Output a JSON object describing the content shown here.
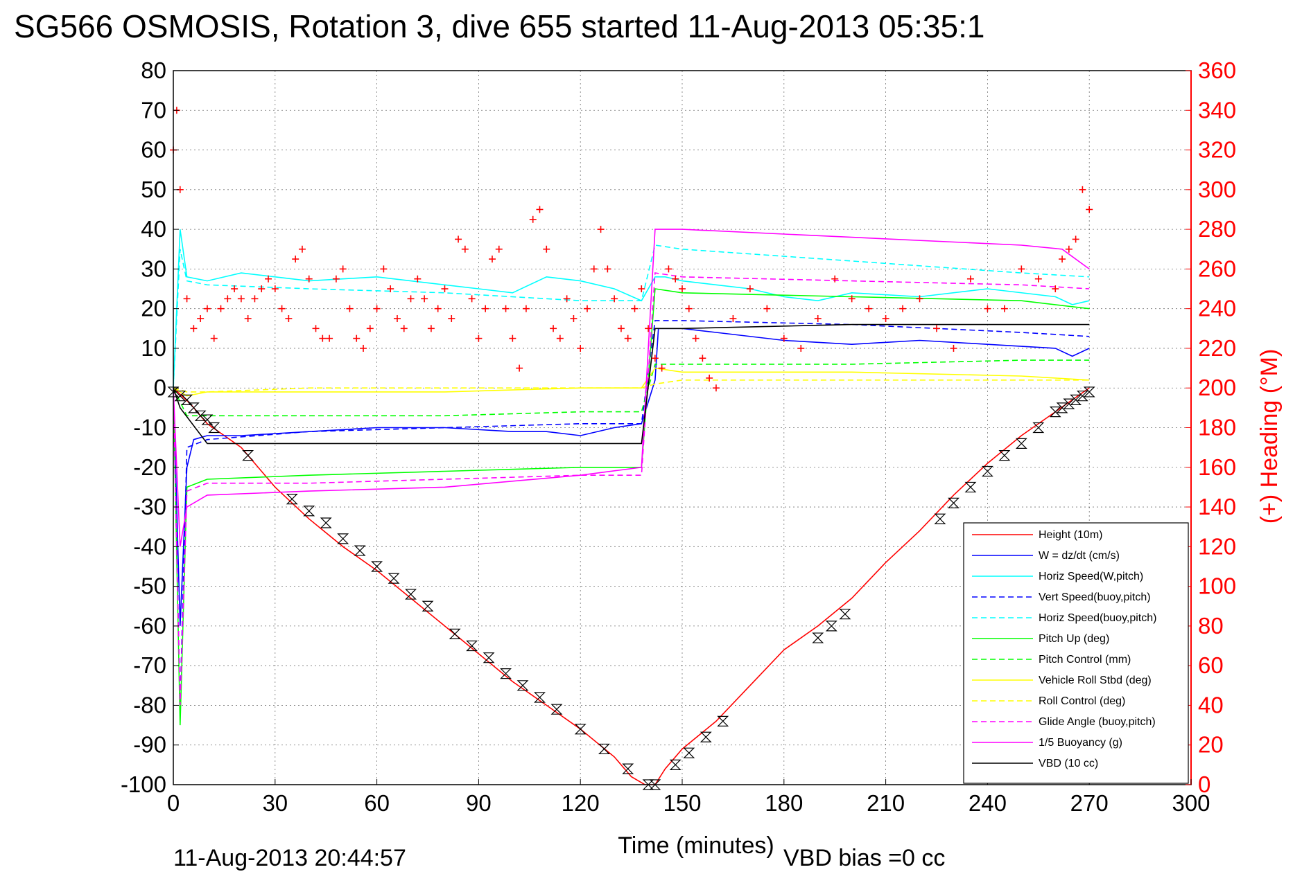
{
  "chart_data": {
    "type": "line",
    "title": "SG566 OSMOSIS, Rotation 3, dive 655 started 11-Aug-2013 05:35:1",
    "xlabel": "Time (minutes)",
    "ylabel_left": "",
    "ylabel_right": "(+) Heading (°M)",
    "xlim": [
      0,
      300
    ],
    "ylim_left": [
      -100,
      80
    ],
    "ylim_right": [
      0,
      360
    ],
    "x_ticks": [
      0,
      30,
      60,
      90,
      120,
      150,
      180,
      210,
      240,
      270,
      300
    ],
    "y_ticks_left": [
      80,
      70,
      60,
      50,
      40,
      30,
      20,
      10,
      0,
      -10,
      -20,
      -30,
      -40,
      -50,
      -60,
      -70,
      -80,
      -90,
      -100
    ],
    "y_ticks_right": [
      360,
      340,
      320,
      300,
      280,
      260,
      240,
      220,
      200,
      180,
      160,
      140,
      120,
      100,
      80,
      60,
      40,
      20,
      0
    ],
    "grid": true,
    "legend_position": "bottom-right",
    "footer_date": "11-Aug-2013 20:44:57",
    "footer_note": "VBD bias =0 cc",
    "colors": {
      "red": "#ff0000",
      "blue": "#0000ff",
      "cyan": "#00ffff",
      "green": "#00ff00",
      "yellow": "#ffff00",
      "magenta": "#ff00ff",
      "black": "#000000"
    },
    "series": [
      {
        "name": "Height (10m)",
        "color": "#ff0000",
        "dash": "solid",
        "x": [
          0,
          5,
          10,
          20,
          30,
          40,
          50,
          60,
          70,
          80,
          90,
          100,
          110,
          120,
          130,
          135,
          139,
          142,
          145,
          150,
          160,
          170,
          180,
          190,
          200,
          210,
          220,
          230,
          240,
          250,
          260,
          265,
          270
        ],
        "y": [
          0,
          -4,
          -9,
          -15,
          -25,
          -33,
          -40,
          -46,
          -53,
          -60,
          -67,
          -74,
          -80,
          -86,
          -93,
          -98,
          -100,
          -100,
          -96,
          -91,
          -84,
          -75,
          -66,
          -60,
          -53,
          -44,
          -36,
          -27,
          -19,
          -12,
          -6,
          -3,
          0
        ]
      },
      {
        "name": "W = dz/dt (cm/s)",
        "color": "#0000ff",
        "dash": "solid",
        "x": [
          0,
          2,
          4,
          6,
          10,
          20,
          40,
          60,
          80,
          100,
          110,
          120,
          130,
          138,
          142,
          143,
          150,
          160,
          180,
          200,
          220,
          240,
          260,
          265,
          270
        ],
        "y": [
          0,
          -60,
          -20,
          -13,
          -12,
          -12,
          -11,
          -10,
          -10,
          -11,
          -11,
          -12,
          -10,
          -9,
          2,
          15,
          15,
          14,
          12,
          11,
          12,
          11,
          10,
          8,
          10
        ]
      },
      {
        "name": "Horiz Speed(W,pitch)",
        "color": "#00ffff",
        "dash": "solid",
        "x": [
          0,
          2,
          4,
          10,
          20,
          30,
          40,
          60,
          80,
          90,
          100,
          110,
          120,
          130,
          138,
          142,
          145,
          150,
          160,
          170,
          180,
          190,
          200,
          220,
          240,
          260,
          265,
          270
        ],
        "y": [
          0,
          40,
          28,
          27,
          29,
          28,
          27,
          28,
          26,
          25,
          24,
          28,
          27,
          25,
          22,
          28,
          28,
          27,
          26,
          25,
          23,
          22,
          24,
          23,
          25,
          23,
          21,
          22
        ]
      },
      {
        "name": "Vert Speed(buoy,pitch)",
        "color": "#0000ff",
        "dash": "dashed",
        "x": [
          0,
          2,
          4,
          10,
          40,
          80,
          120,
          138,
          142,
          150,
          200,
          250,
          270
        ],
        "y": [
          0,
          -80,
          -15,
          -13,
          -11,
          -10,
          -9,
          -9,
          17,
          17,
          16,
          14,
          13
        ]
      },
      {
        "name": "Horiz Speed(buoy,pitch)",
        "color": "#00ffff",
        "dash": "dashed",
        "x": [
          0,
          2,
          4,
          10,
          40,
          80,
          120,
          138,
          142,
          150,
          200,
          250,
          270
        ],
        "y": [
          0,
          35,
          27,
          26,
          25,
          24,
          22,
          22,
          36,
          35,
          32,
          29,
          28
        ]
      },
      {
        "name": "Pitch Up (deg)",
        "color": "#00ff00",
        "dash": "solid",
        "x": [
          0,
          2,
          4,
          10,
          40,
          80,
          120,
          138,
          142,
          150,
          200,
          250,
          270
        ],
        "y": [
          0,
          -85,
          -25,
          -23,
          -22,
          -21,
          -20,
          -20,
          25,
          24,
          23,
          22,
          20
        ]
      },
      {
        "name": "Pitch Control (mm)",
        "color": "#00ff00",
        "dash": "dashed",
        "x": [
          0,
          4,
          10,
          40,
          80,
          120,
          138,
          142,
          150,
          200,
          250,
          270
        ],
        "y": [
          0,
          -7,
          -7,
          -7,
          -7,
          -6,
          -6,
          6,
          6,
          6,
          7,
          7
        ]
      },
      {
        "name": "Vehicle Roll Stbd (deg)",
        "color": "#ffff00",
        "dash": "solid",
        "x": [
          0,
          4,
          10,
          40,
          80,
          120,
          138,
          142,
          150,
          200,
          250,
          270
        ],
        "y": [
          0,
          -2,
          -1,
          -1,
          -1,
          0,
          0,
          5,
          4,
          4,
          3,
          2
        ]
      },
      {
        "name": "Roll Control (deg)",
        "color": "#ffff00",
        "dash": "dashed",
        "x": [
          0,
          4,
          10,
          40,
          80,
          120,
          138,
          142,
          150,
          200,
          250,
          270
        ],
        "y": [
          0,
          -1,
          -1,
          0,
          0,
          0,
          0,
          1,
          2,
          2,
          2,
          2
        ]
      },
      {
        "name": "Glide Angle (buoy,pitch)",
        "color": "#ff00ff",
        "dash": "dashed",
        "x": [
          0,
          2,
          4,
          10,
          40,
          80,
          120,
          138,
          142,
          150,
          200,
          250,
          270
        ],
        "y": [
          0,
          -80,
          -26,
          -24,
          -24,
          -23,
          -22,
          -22,
          29,
          28,
          27,
          26,
          25
        ]
      },
      {
        "name": "1/5 Buoyancy (g)",
        "color": "#ff00ff",
        "dash": "solid",
        "x": [
          0,
          2,
          4,
          10,
          40,
          80,
          120,
          138,
          142,
          150,
          200,
          250,
          262,
          270
        ],
        "y": [
          0,
          -40,
          -30,
          -27,
          -26,
          -25,
          -22,
          -20,
          40,
          40,
          38,
          36,
          35,
          30
        ]
      },
      {
        "name": "VBD (10 cc)",
        "color": "#000000",
        "dash": "solid",
        "x": [
          0,
          2,
          10,
          30,
          60,
          100,
          138,
          142,
          150,
          200,
          250,
          270
        ],
        "y": [
          0,
          -5,
          -14,
          -14,
          -14,
          -14,
          -14,
          15,
          15,
          16,
          16,
          16
        ]
      }
    ],
    "heading": {
      "color": "#ff0000",
      "marker": "+",
      "x": [
        0,
        1,
        2,
        4,
        6,
        8,
        10,
        12,
        14,
        16,
        18,
        20,
        22,
        24,
        26,
        28,
        30,
        32,
        34,
        36,
        38,
        40,
        42,
        44,
        46,
        48,
        50,
        52,
        54,
        56,
        58,
        60,
        62,
        64,
        66,
        68,
        70,
        72,
        74,
        76,
        78,
        80,
        82,
        84,
        86,
        88,
        90,
        92,
        94,
        96,
        98,
        100,
        102,
        104,
        106,
        108,
        110,
        112,
        114,
        116,
        118,
        120,
        122,
        124,
        126,
        128,
        130,
        132,
        134,
        136,
        138,
        140,
        142,
        144,
        146,
        148,
        150,
        152,
        154,
        156,
        158,
        160,
        165,
        170,
        175,
        180,
        185,
        190,
        195,
        200,
        205,
        210,
        215,
        220,
        225,
        230,
        235,
        240,
        245,
        250,
        255,
        260,
        262,
        264,
        266,
        268,
        270
      ],
      "y": [
        320,
        340,
        300,
        245,
        230,
        235,
        240,
        225,
        240,
        245,
        250,
        245,
        235,
        245,
        250,
        255,
        250,
        240,
        235,
        265,
        270,
        255,
        230,
        225,
        225,
        255,
        260,
        240,
        225,
        220,
        230,
        240,
        260,
        250,
        235,
        230,
        245,
        255,
        245,
        230,
        240,
        250,
        235,
        275,
        270,
        245,
        225,
        240,
        265,
        270,
        240,
        225,
        210,
        240,
        285,
        290,
        270,
        230,
        225,
        245,
        235,
        220,
        240,
        260,
        280,
        260,
        245,
        230,
        225,
        240,
        250,
        230,
        215,
        210,
        260,
        255,
        250,
        240,
        225,
        215,
        205,
        200,
        235,
        250,
        240,
        225,
        220,
        235,
        255,
        245,
        240,
        235,
        240,
        245,
        230,
        220,
        255,
        240,
        240,
        260,
        255,
        250,
        265,
        270,
        275,
        300,
        290
      ]
    },
    "points": {
      "color": "#000000",
      "marker": "hourglass",
      "x": [
        0,
        2,
        4,
        6,
        8,
        10,
        12,
        22,
        35,
        40,
        45,
        50,
        55,
        60,
        65,
        70,
        75,
        83,
        88,
        93,
        98,
        103,
        108,
        113,
        120,
        127,
        134,
        140,
        142,
        148,
        152,
        157,
        162,
        190,
        194,
        198,
        226,
        230,
        235,
        240,
        245,
        250,
        255,
        260,
        262,
        264,
        266,
        268,
        270
      ],
      "y": [
        -1,
        -2,
        -3,
        -5,
        -7,
        -8,
        -10,
        -17,
        -28,
        -31,
        -34,
        -38,
        -41,
        -45,
        -48,
        -52,
        -55,
        -62,
        -65,
        -68,
        -72,
        -75,
        -78,
        -81,
        -86,
        -91,
        -96,
        -100,
        -100,
        -95,
        -92,
        -88,
        -84,
        -63,
        -60,
        -57,
        -33,
        -29,
        -25,
        -21,
        -17,
        -14,
        -10,
        -6,
        -5,
        -4,
        -3,
        -2,
        -1
      ]
    }
  }
}
